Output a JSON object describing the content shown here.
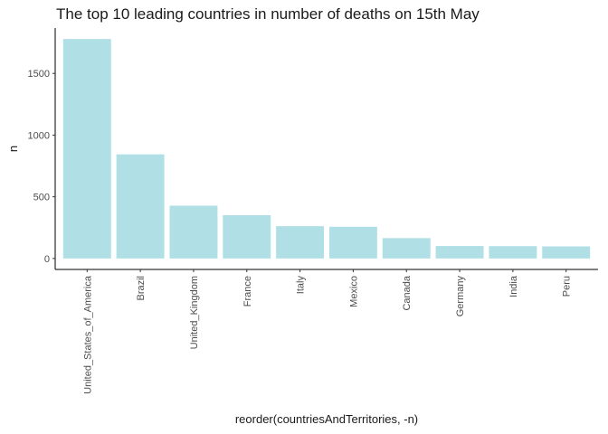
{
  "chart_data": {
    "type": "bar",
    "title": "The top 10 leading countries in number of deaths on 15th May",
    "xlabel": "reorder(countriesAndTerritories, -n)",
    "ylabel": "n",
    "categories": [
      "United_States_of_America",
      "Brazil",
      "United_Kingdom",
      "France",
      "Italy",
      "Mexico",
      "Canada",
      "Germany",
      "India",
      "Peru"
    ],
    "values": [
      1779,
      844,
      428,
      351,
      262,
      257,
      165,
      101,
      100,
      98
    ],
    "yticks": [
      0,
      500,
      1000,
      1500
    ],
    "ylim": [
      -89,
      1868
    ],
    "bar_color": "#b0e0e6",
    "grid": false,
    "legend": "none"
  }
}
